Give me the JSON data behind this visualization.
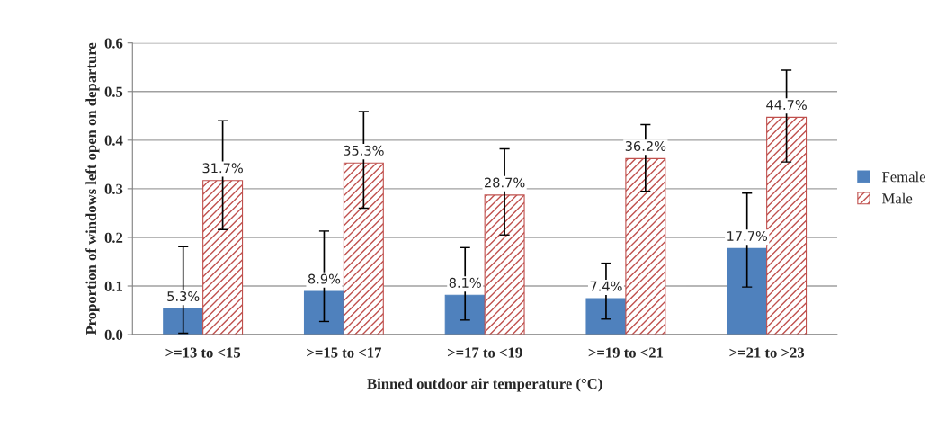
{
  "chart_data": {
    "type": "bar",
    "categories": [
      ">=13 to <15",
      ">=15 to <17",
      ">=17 to <19",
      ">=19 to <21",
      ">=21 to >23"
    ],
    "series": [
      {
        "name": "Female",
        "color": "#4f81bd",
        "values": [
          0.053,
          0.089,
          0.081,
          0.074,
          0.177
        ],
        "value_labels": [
          "5.3%",
          "8.9%",
          "8.1%",
          "7.4%",
          "17.7%"
        ],
        "errors": [
          [
            0.003,
            0.181
          ],
          [
            0.027,
            0.213
          ],
          [
            0.03,
            0.179
          ],
          [
            0.032,
            0.147
          ],
          [
            0.098,
            0.291
          ]
        ]
      },
      {
        "name": "Male",
        "color": "#c0504d",
        "values": [
          0.317,
          0.353,
          0.287,
          0.362,
          0.447
        ],
        "value_labels": [
          "31.7%",
          "35.3%",
          "28.7%",
          "36.2%",
          "44.7%"
        ],
        "errors": [
          [
            0.216,
            0.44
          ],
          [
            0.26,
            0.459
          ],
          [
            0.205,
            0.382
          ],
          [
            0.295,
            0.432
          ],
          [
            0.355,
            0.544
          ]
        ]
      }
    ],
    "xlabel": "Binned outdoor air temperature (°C)",
    "ylabel": "Proportion of windows left open on departure",
    "ylim": [
      0,
      0.6
    ],
    "yticks": [
      {
        "value": 0,
        "label": "0.0"
      },
      {
        "value": 0.1,
        "label": "0.1"
      },
      {
        "value": 0.2,
        "label": "0.2"
      },
      {
        "value": 0.3,
        "label": "0.3"
      },
      {
        "value": 0.4,
        "label": "0.4"
      },
      {
        "value": 0.5,
        "label": "0.5"
      },
      {
        "value": 0.6,
        "label": "0.6"
      }
    ],
    "grid": "y",
    "legend": "right"
  }
}
